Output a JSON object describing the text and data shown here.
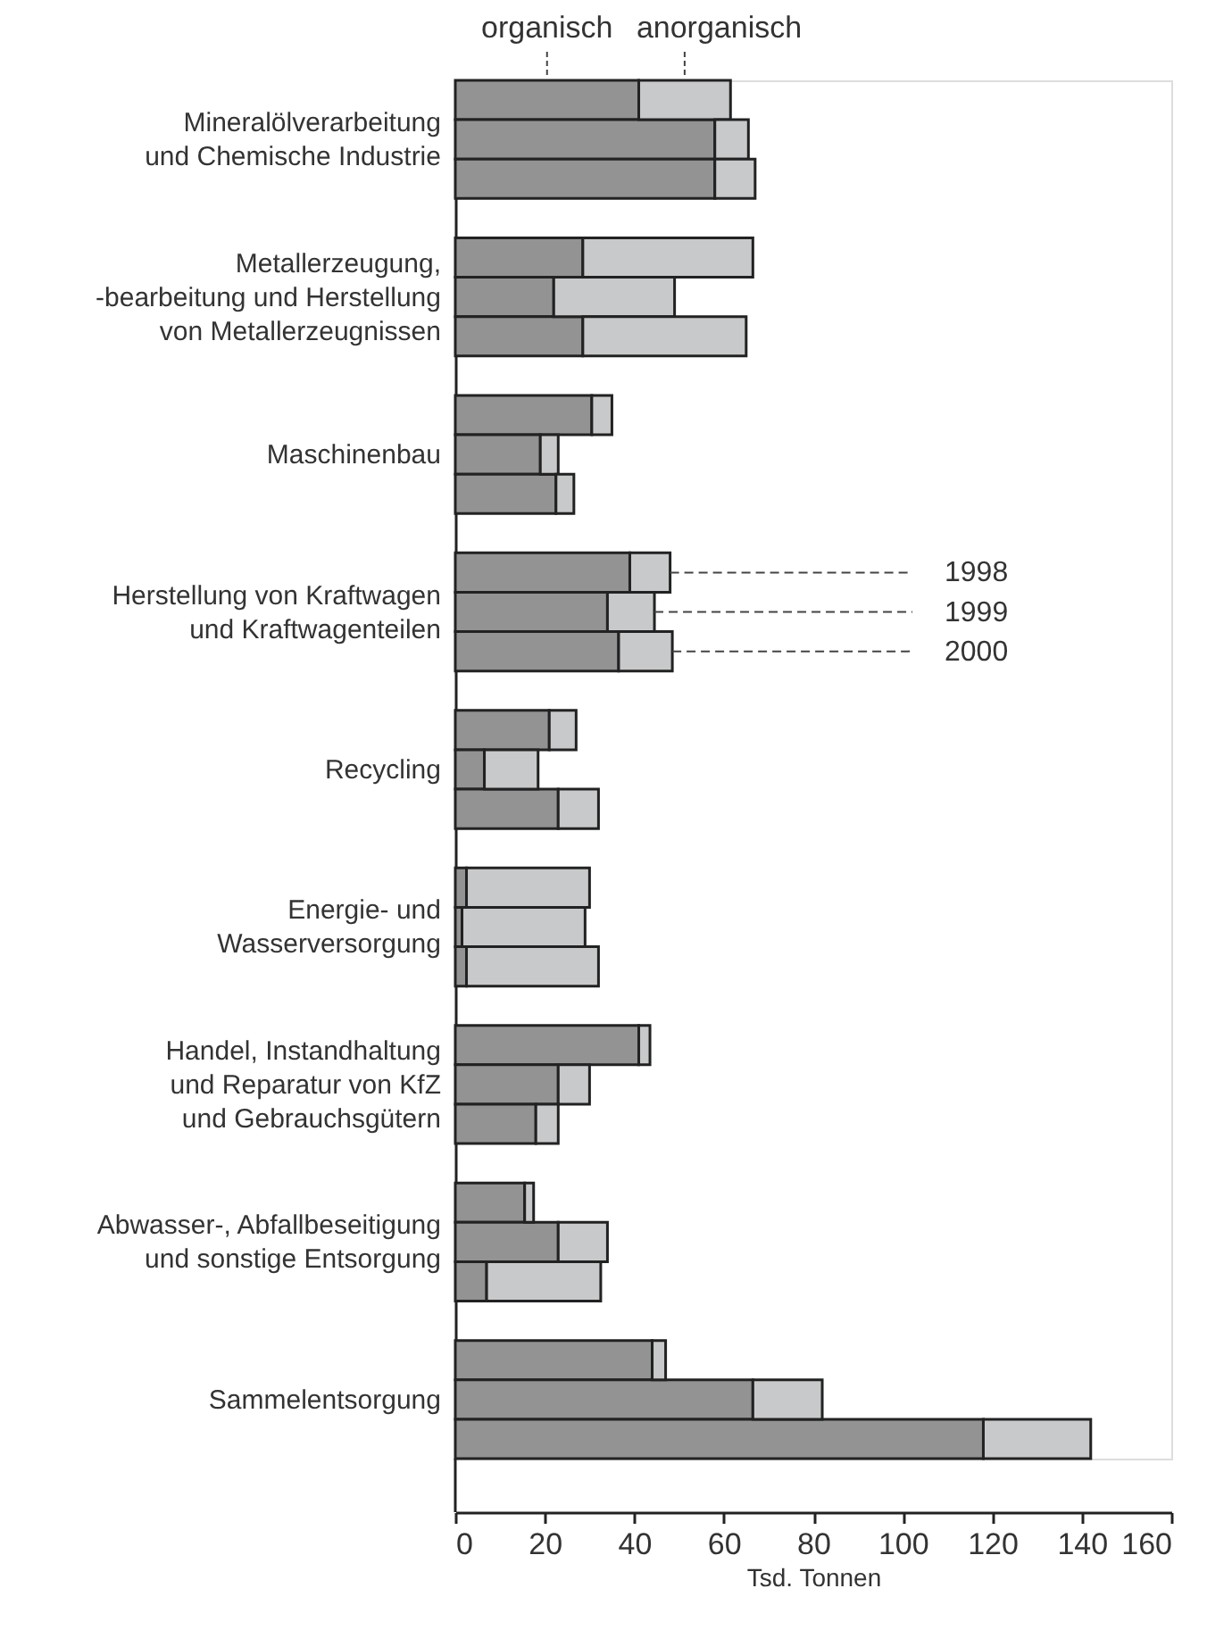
{
  "chart_data": {
    "type": "bar",
    "orientation": "horizontal",
    "stacked": true,
    "xlabel": "Tsd. Tonnen",
    "xlim": [
      0,
      160
    ],
    "xticks": [
      0,
      20,
      40,
      60,
      80,
      100,
      120,
      140,
      160
    ],
    "legend": "top",
    "categories": [
      null,
      "Mineralölverarbeitung\nund Chemische Industrie",
      null,
      null,
      null,
      "Metallerzeugung,\n-bearbeitung und Herstellung\nvon Metallerzeugnissen",
      null,
      null,
      null,
      "Maschinenbau",
      null,
      null,
      null,
      "Herstellung von Kraftwagen\nund Kraftwagenteilen",
      null,
      null,
      null,
      "Recycling",
      null,
      null,
      null,
      "Energie- und\nWasserversorgung",
      null,
      null,
      null,
      "Handel, Instandhaltung\nund Reparatur von KfZ\nund Gebrauchsgütern",
      null,
      null,
      null,
      "Abwasser-, Abfallbeseitigung\nund sonstige Entsorgung",
      null,
      null,
      null,
      "Sammelentsorgung",
      null
    ],
    "series": [
      {
        "name": "organisch",
        "color": "#939393",
        "values": [
          41,
          58,
          58,
          null,
          28.5,
          22,
          28.5,
          null,
          30.5,
          19,
          22.5,
          null,
          39,
          34,
          36.5,
          null,
          21,
          6.5,
          23,
          null,
          2.5,
          1.5,
          2.5,
          null,
          41,
          23,
          18,
          null,
          15.5,
          23,
          7,
          null,
          44,
          66.5,
          118
        ]
      },
      {
        "name": "anorganisch",
        "color": "#c8c9ca",
        "values": [
          20.5,
          7.5,
          9,
          null,
          38,
          27,
          36.5,
          null,
          4.5,
          4,
          4,
          null,
          9,
          10.5,
          12,
          null,
          6,
          12,
          9,
          null,
          27.5,
          27.5,
          29.5,
          null,
          2.5,
          7,
          5,
          null,
          2,
          11,
          25.5,
          null,
          3,
          15.5,
          24
        ]
      }
    ],
    "annotations": [
      {
        "text": "1998",
        "x": 48
      },
      {
        "text": "1999",
        "x": 44.5
      },
      {
        "text": "2000",
        "x": 48.5
      }
    ]
  }
}
